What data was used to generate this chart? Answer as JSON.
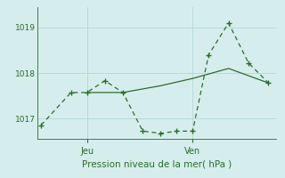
{
  "xlabel": "Pression niveau de la mer( hPa )",
  "bg_color": "#d5eeed",
  "grid_color": "#b8dada",
  "line_color": "#2d6b2d",
  "ylim": [
    1016.55,
    1019.45
  ],
  "yticks": [
    1017,
    1018,
    1019
  ],
  "xlim": [
    0,
    12
  ],
  "x_jeu_pos": 2.5,
  "x_ven_pos": 7.8,
  "line1_x": [
    0.2,
    1.7,
    2.5,
    3.4,
    4.3,
    5.3,
    6.2,
    7.0,
    7.8,
    8.6,
    9.6,
    10.6,
    11.6
  ],
  "line1_y": [
    1016.85,
    1017.57,
    1017.57,
    1017.83,
    1017.57,
    1016.72,
    1016.67,
    1016.72,
    1016.72,
    1018.4,
    1019.1,
    1018.22,
    1017.78
  ],
  "line2_x": [
    2.5,
    4.3,
    6.2,
    7.8,
    9.6,
    11.6
  ],
  "line2_y": [
    1017.57,
    1017.57,
    1017.72,
    1017.88,
    1018.1,
    1017.78
  ]
}
